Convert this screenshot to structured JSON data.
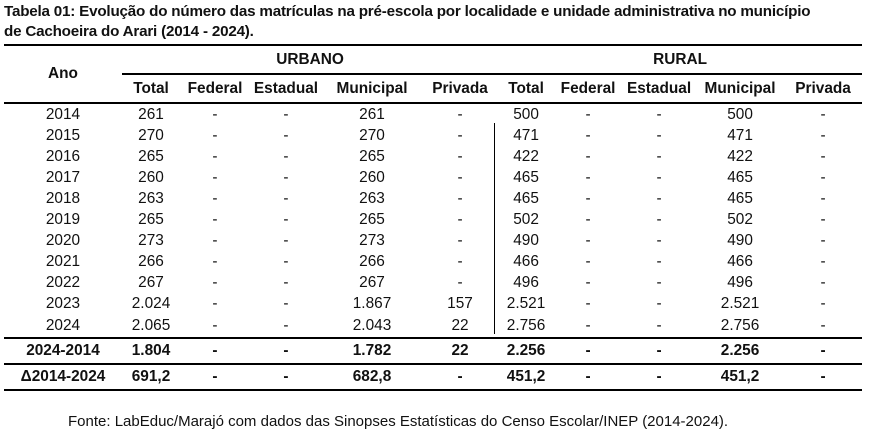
{
  "caption": {
    "line1": "Tabela 01: Evolução do número das matrículas na pré-escola por localidade e unidade administrativa no município",
    "line2": "de Cachoeira do Arari (2014 - 2024)."
  },
  "header": {
    "ano": "Ano",
    "urbano": "URBANO",
    "rural": "RURAL",
    "columns": [
      "Total",
      "Federal",
      "Estadual",
      "Municipal",
      "Privada",
      "Total",
      "Federal",
      "Estadual",
      "Municipal",
      "Privada"
    ]
  },
  "rows": [
    {
      "year": "2014",
      "cells": [
        "261",
        "-",
        "-",
        "261",
        "-",
        "500",
        "-",
        "-",
        "500",
        "-"
      ]
    },
    {
      "year": "2015",
      "cells": [
        "270",
        "-",
        "-",
        "270",
        "-",
        "471",
        "-",
        "-",
        "471",
        "-"
      ]
    },
    {
      "year": "2016",
      "cells": [
        "265",
        "-",
        "-",
        "265",
        "-",
        "422",
        "-",
        "-",
        "422",
        "-"
      ]
    },
    {
      "year": "2017",
      "cells": [
        "260",
        "-",
        "-",
        "260",
        "-",
        "465",
        "-",
        "-",
        "465",
        "-"
      ]
    },
    {
      "year": "2018",
      "cells": [
        "263",
        "-",
        "-",
        "263",
        "-",
        "465",
        "-",
        "-",
        "465",
        "-"
      ]
    },
    {
      "year": "2019",
      "cells": [
        "265",
        "-",
        "-",
        "265",
        "-",
        "502",
        "-",
        "-",
        "502",
        "-"
      ]
    },
    {
      "year": "2020",
      "cells": [
        "273",
        "-",
        "-",
        "273",
        "-",
        "490",
        "-",
        "-",
        "490",
        "-"
      ]
    },
    {
      "year": "2021",
      "cells": [
        "266",
        "-",
        "-",
        "266",
        "-",
        "466",
        "-",
        "-",
        "466",
        "-"
      ]
    },
    {
      "year": "2022",
      "cells": [
        "267",
        "-",
        "-",
        "267",
        "-",
        "496",
        "-",
        "-",
        "496",
        "-"
      ]
    },
    {
      "year": "2023",
      "cells": [
        "2.024",
        "-",
        "-",
        "1.867",
        "157",
        "2.521",
        "-",
        "-",
        "2.521",
        "-"
      ]
    },
    {
      "year": "2024",
      "cells": [
        "2.065",
        "-",
        "-",
        "2.043",
        "22",
        "2.756",
        "-",
        "-",
        "2.756",
        "-"
      ]
    }
  ],
  "summary": [
    {
      "label": "2024-2014",
      "cells": [
        "1.804",
        "-",
        "-",
        "1.782",
        "22",
        "2.256",
        "-",
        "-",
        "2.256",
        "-"
      ]
    },
    {
      "label": "Δ2014-2024",
      "cells": [
        "691,2",
        "-",
        "-",
        "682,8",
        "-",
        "451,2",
        "-",
        "-",
        "451,2",
        "-"
      ]
    }
  ],
  "source": "Fonte: LabEduc/Marajó com dados das Sinopses Estatísticas do Censo Escolar/INEP (2014-2024)."
}
